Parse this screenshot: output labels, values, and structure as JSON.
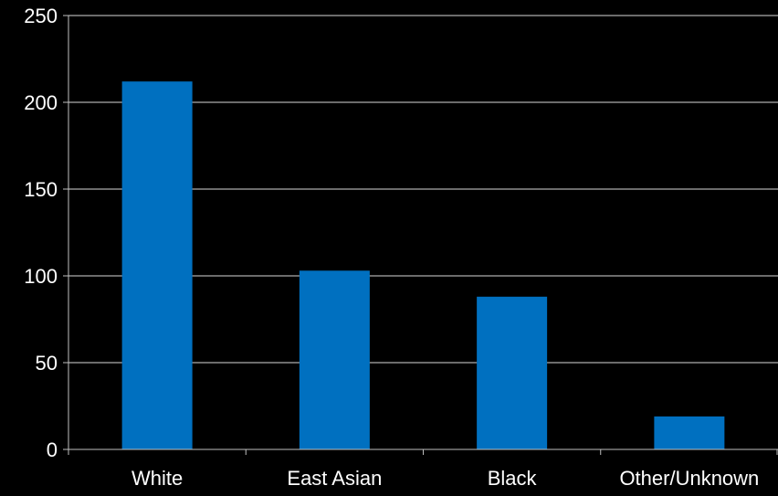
{
  "chart_data": {
    "type": "bar",
    "categories": [
      "White",
      "East Asian",
      "Black",
      "Other/Unknown"
    ],
    "values": [
      212,
      103,
      88,
      19
    ],
    "ylim": [
      0,
      250
    ],
    "yticks": [
      0,
      50,
      100,
      150,
      200,
      250
    ],
    "grid": true,
    "legend": "none",
    "title": "",
    "xlabel": "",
    "ylabel": ""
  },
  "colors": {
    "background": "#000000",
    "bar": "#0070C0",
    "gridline": "#d9d9d9",
    "axis": "#bfbfbf",
    "text": "#ffffff"
  }
}
